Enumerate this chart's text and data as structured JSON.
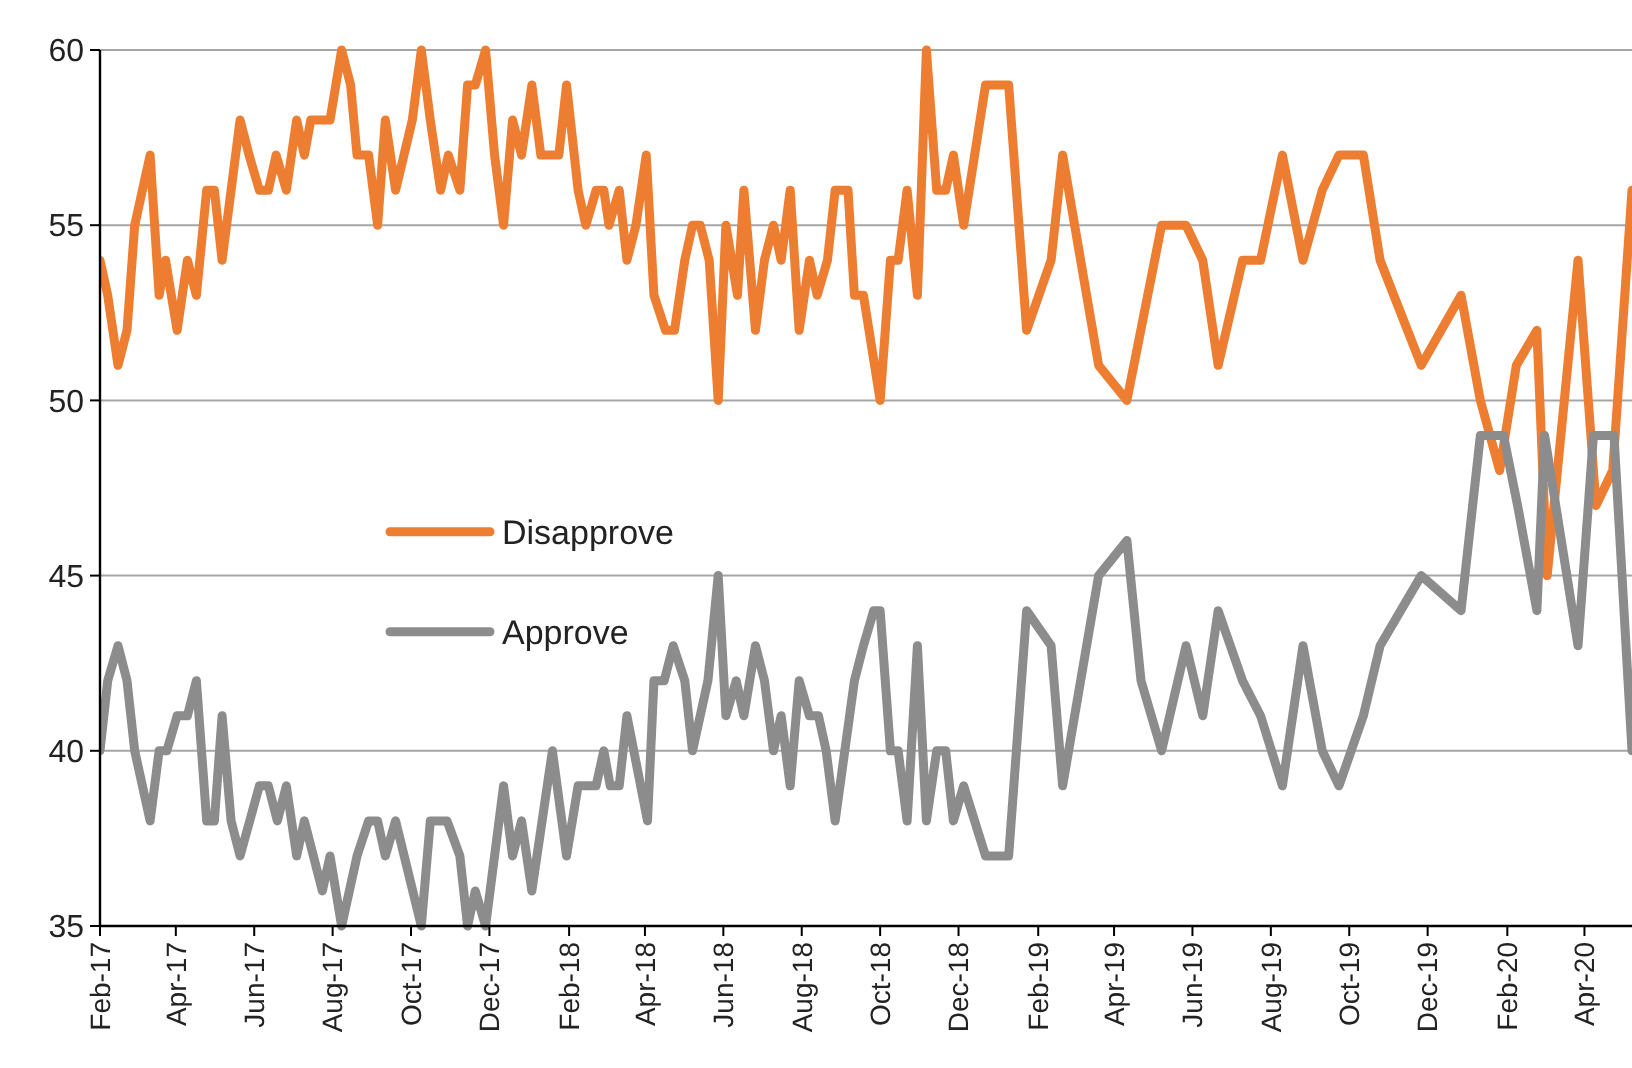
{
  "chart_data": {
    "type": "line",
    "ylim": [
      35,
      60
    ],
    "yticks": [
      35,
      40,
      45,
      50,
      55,
      60
    ],
    "grid": "y",
    "legend": "left",
    "line_style": "solid",
    "marker": "none",
    "xlim": [
      "2017-02-01",
      "2020-05-08"
    ],
    "xticks": [
      {
        "value": "2017-02-01",
        "label": "Feb-17"
      },
      {
        "value": "2017-04-01",
        "label": "Apr-17"
      },
      {
        "value": "2017-06-01",
        "label": "Jun-17"
      },
      {
        "value": "2017-08-01",
        "label": "Aug-17"
      },
      {
        "value": "2017-10-01",
        "label": "Oct-17"
      },
      {
        "value": "2017-12-01",
        "label": "Dec-17"
      },
      {
        "value": "2018-02-01",
        "label": "Feb-18"
      },
      {
        "value": "2018-04-01",
        "label": "Apr-18"
      },
      {
        "value": "2018-06-01",
        "label": "Jun-18"
      },
      {
        "value": "2018-08-01",
        "label": "Aug-18"
      },
      {
        "value": "2018-10-01",
        "label": "Oct-18"
      },
      {
        "value": "2018-12-01",
        "label": "Dec-18"
      },
      {
        "value": "2019-02-01",
        "label": "Feb-19"
      },
      {
        "value": "2019-04-01",
        "label": "Apr-19"
      },
      {
        "value": "2019-06-01",
        "label": "Jun-19"
      },
      {
        "value": "2019-08-01",
        "label": "Aug-19"
      },
      {
        "value": "2019-10-01",
        "label": "Oct-19"
      },
      {
        "value": "2019-12-01",
        "label": "Dec-19"
      },
      {
        "value": "2020-02-01",
        "label": "Feb-20"
      },
      {
        "value": "2020-04-01",
        "label": "Apr-20"
      }
    ],
    "series": [
      {
        "name": "Disapprove",
        "color": "#ed7d31",
        "x": [
          "2017-02-01",
          "2017-02-07",
          "2017-02-15",
          "2017-02-22",
          "2017-02-28",
          "2017-03-12",
          "2017-03-19",
          "2017-03-24",
          "2017-04-02",
          "2017-04-10",
          "2017-04-17",
          "2017-04-25",
          "2017-05-01",
          "2017-05-07",
          "2017-05-21",
          "2017-05-28",
          "2017-06-05",
          "2017-06-12",
          "2017-06-18",
          "2017-06-26",
          "2017-07-04",
          "2017-07-10",
          "2017-07-15",
          "2017-07-30",
          "2017-08-08",
          "2017-08-15",
          "2017-08-20",
          "2017-08-29",
          "2017-09-05",
          "2017-09-11",
          "2017-09-19",
          "2017-10-02",
          "2017-10-09",
          "2017-10-16",
          "2017-10-24",
          "2017-10-30",
          "2017-11-08",
          "2017-11-14",
          "2017-11-20",
          "2017-11-28",
          "2017-12-05",
          "2017-12-12",
          "2017-12-19",
          "2017-12-26",
          "2018-01-03",
          "2018-01-10",
          "2018-01-24",
          "2018-01-30",
          "2018-02-08",
          "2018-02-14",
          "2018-02-22",
          "2018-02-28",
          "2018-03-04",
          "2018-03-12",
          "2018-03-18",
          "2018-03-25",
          "2018-04-02",
          "2018-04-08",
          "2018-04-17",
          "2018-04-24",
          "2018-05-02",
          "2018-05-08",
          "2018-05-14",
          "2018-05-21",
          "2018-05-28",
          "2018-06-03",
          "2018-06-12",
          "2018-06-17",
          "2018-06-26",
          "2018-07-03",
          "2018-07-10",
          "2018-07-16",
          "2018-07-23",
          "2018-07-30",
          "2018-08-07",
          "2018-08-13",
          "2018-08-21",
          "2018-08-27",
          "2018-09-06",
          "2018-09-11",
          "2018-09-18",
          "2018-10-01",
          "2018-10-09",
          "2018-10-15",
          "2018-10-22",
          "2018-10-30",
          "2018-11-06",
          "2018-11-14",
          "2018-11-21",
          "2018-11-27",
          "2018-12-05",
          "2018-12-22",
          "2019-01-09",
          "2019-01-23",
          "2019-02-11",
          "2019-02-20",
          "2019-03-20",
          "2019-04-11",
          "2019-05-08",
          "2019-05-27",
          "2019-06-09",
          "2019-06-21",
          "2019-07-10",
          "2019-07-24",
          "2019-08-10",
          "2019-08-26",
          "2019-09-10",
          "2019-09-23",
          "2019-10-12",
          "2019-10-25",
          "2019-11-26",
          "2019-12-27",
          "2020-01-11",
          "2020-01-26",
          "2020-02-08",
          "2020-02-24",
          "2020-03-03",
          "2020-03-27",
          "2020-04-10",
          "2020-04-23",
          "2020-05-08"
        ],
        "values": [
          54,
          53,
          51,
          52,
          55,
          57,
          53,
          54,
          52,
          54,
          53,
          56,
          56,
          54,
          58,
          57,
          56,
          56,
          57,
          56,
          58,
          57,
          58,
          58,
          60,
          59,
          57,
          57,
          55,
          58,
          56,
          58,
          60,
          58,
          56,
          57,
          56,
          59,
          59,
          60,
          57,
          55,
          58,
          57,
          59,
          57,
          57,
          59,
          56,
          55,
          56,
          56,
          55,
          56,
          54,
          55,
          57,
          53,
          52,
          52,
          54,
          55,
          55,
          54,
          50,
          55,
          53,
          56,
          52,
          54,
          55,
          54,
          56,
          52,
          54,
          53,
          54,
          56,
          56,
          53,
          53,
          50,
          54,
          54,
          56,
          53,
          60,
          56,
          56,
          57,
          55,
          59,
          59,
          52,
          54,
          57,
          51,
          50,
          55,
          55,
          54,
          51,
          54,
          54,
          57,
          54,
          56,
          57,
          57,
          54,
          51,
          53,
          50,
          48,
          51,
          52,
          45,
          54,
          47,
          48,
          56
        ]
      },
      {
        "name": "Approve",
        "color": "#8c8c8c",
        "x": [
          "2017-02-01",
          "2017-02-07",
          "2017-02-15",
          "2017-02-22",
          "2017-02-28",
          "2017-03-12",
          "2017-03-19",
          "2017-03-25",
          "2017-04-02",
          "2017-04-10",
          "2017-04-17",
          "2017-04-25",
          "2017-05-01",
          "2017-05-07",
          "2017-05-14",
          "2017-05-21",
          "2017-06-05",
          "2017-06-12",
          "2017-06-19",
          "2017-06-26",
          "2017-07-04",
          "2017-07-10",
          "2017-07-17",
          "2017-07-24",
          "2017-07-30",
          "2017-08-08",
          "2017-08-20",
          "2017-08-29",
          "2017-09-05",
          "2017-09-11",
          "2017-09-19",
          "2017-10-09",
          "2017-10-16",
          "2017-10-29",
          "2017-11-08",
          "2017-11-14",
          "2017-11-20",
          "2017-11-28",
          "2017-12-12",
          "2017-12-19",
          "2017-12-26",
          "2018-01-03",
          "2018-01-19",
          "2018-01-30",
          "2018-02-08",
          "2018-02-22",
          "2018-02-28",
          "2018-03-05",
          "2018-03-12",
          "2018-03-18",
          "2018-04-03",
          "2018-04-08",
          "2018-04-16",
          "2018-04-23",
          "2018-05-02",
          "2018-05-08",
          "2018-05-20",
          "2018-05-28",
          "2018-06-03",
          "2018-06-11",
          "2018-06-17",
          "2018-06-26",
          "2018-07-03",
          "2018-07-10",
          "2018-07-16",
          "2018-07-23",
          "2018-07-30",
          "2018-08-07",
          "2018-08-14",
          "2018-08-20",
          "2018-08-27",
          "2018-09-11",
          "2018-09-18",
          "2018-09-26",
          "2018-10-01",
          "2018-10-09",
          "2018-10-15",
          "2018-10-22",
          "2018-10-30",
          "2018-11-06",
          "2018-11-14",
          "2018-11-21",
          "2018-11-27",
          "2018-12-05",
          "2018-12-22",
          "2019-01-09",
          "2019-01-23",
          "2019-02-11",
          "2019-02-20",
          "2019-03-20",
          "2019-04-11",
          "2019-04-22",
          "2019-05-08",
          "2019-05-27",
          "2019-06-09",
          "2019-06-21",
          "2019-07-10",
          "2019-07-24",
          "2019-08-10",
          "2019-08-26",
          "2019-09-10",
          "2019-09-23",
          "2019-10-12",
          "2019-10-25",
          "2019-11-26",
          "2019-12-27",
          "2020-01-11",
          "2020-01-29",
          "2020-02-09",
          "2020-02-24",
          "2020-03-01",
          "2020-03-27",
          "2020-04-08",
          "2020-04-24",
          "2020-05-08"
        ],
        "values": [
          40,
          42,
          43,
          42,
          40,
          38,
          40,
          40,
          41,
          41,
          42,
          38,
          38,
          41,
          38,
          37,
          39,
          39,
          38,
          39,
          37,
          38,
          37,
          36,
          37,
          35,
          37,
          38,
          38,
          37,
          38,
          35,
          38,
          38,
          37,
          35,
          36,
          35,
          39,
          37,
          38,
          36,
          40,
          37,
          39,
          39,
          40,
          39,
          39,
          41,
          38,
          42,
          42,
          43,
          42,
          40,
          42,
          45,
          41,
          42,
          41,
          43,
          42,
          40,
          41,
          39,
          42,
          41,
          41,
          40,
          38,
          42,
          43,
          44,
          44,
          40,
          40,
          38,
          43,
          38,
          40,
          40,
          38,
          39,
          37,
          37,
          44,
          43,
          39,
          45,
          46,
          42,
          40,
          43,
          41,
          44,
          42,
          41,
          39,
          43,
          40,
          39,
          41,
          43,
          45,
          44,
          49,
          49,
          47,
          44,
          49,
          43,
          49,
          49,
          40
        ]
      }
    ]
  }
}
